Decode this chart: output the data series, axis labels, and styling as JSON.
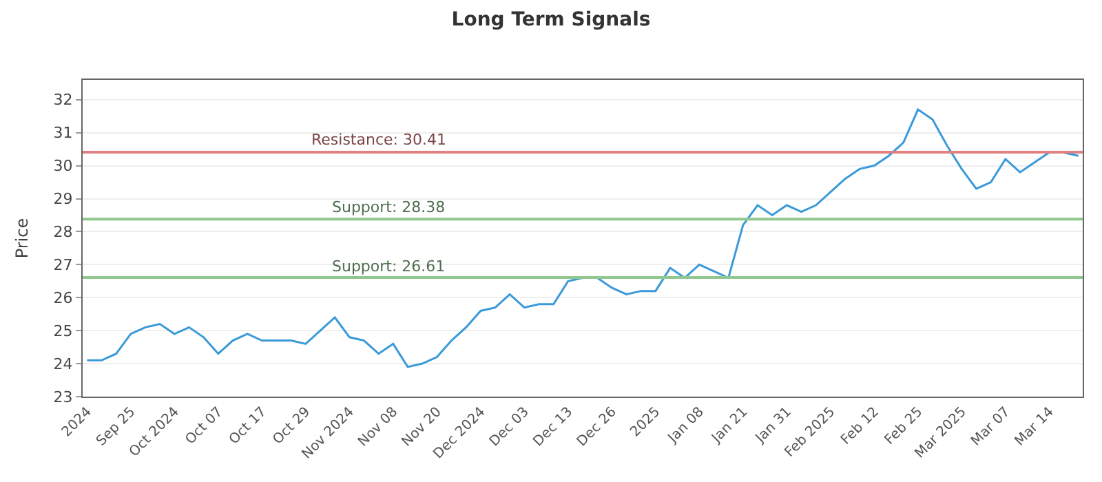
{
  "chart_data": {
    "type": "line",
    "title": "Long Term Signals",
    "ylabel": "Price",
    "categories": [
      "2024",
      null,
      null,
      "Sep 25",
      null,
      null,
      "Oct 2024",
      null,
      null,
      "Oct 07",
      null,
      null,
      "Oct 17",
      null,
      null,
      "Oct 29",
      null,
      null,
      "Nov 2024",
      null,
      null,
      "Nov 08",
      null,
      null,
      "Nov 20",
      null,
      null,
      "Dec 2024",
      null,
      null,
      "Dec 03",
      null,
      null,
      "Dec 13",
      null,
      null,
      "Dec 26",
      null,
      null,
      "2025",
      null,
      null,
      "Jan 08",
      null,
      null,
      "Jan 21",
      null,
      null,
      "Jan 31",
      null,
      null,
      "Feb 2025",
      null,
      null,
      "Feb 12",
      null,
      null,
      "Feb 25",
      null,
      null,
      "Mar 2025",
      null,
      null,
      "Mar 07",
      null,
      null,
      "Mar 14",
      null,
      null
    ],
    "series": [
      {
        "color": "#3a9ad9",
        "values": [
          24.1,
          24.1,
          24.3,
          24.9,
          25.1,
          25.2,
          24.9,
          25.1,
          24.8,
          24.3,
          24.7,
          24.9,
          24.7,
          24.7,
          24.7,
          24.6,
          25.0,
          25.4,
          24.8,
          24.7,
          24.3,
          24.6,
          23.9,
          24.0,
          24.2,
          24.7,
          25.1,
          25.6,
          25.7,
          26.1,
          25.7,
          25.8,
          25.8,
          26.5,
          26.6,
          26.6,
          26.3,
          26.1,
          26.2,
          26.2,
          26.9,
          26.6,
          27.0,
          26.8,
          26.6,
          28.2,
          28.8,
          28.5,
          28.8,
          28.6,
          28.8,
          29.2,
          29.6,
          29.9,
          30.0,
          30.3,
          30.7,
          31.7,
          31.4,
          30.6,
          29.9,
          29.3,
          29.5,
          30.2,
          29.8,
          30.1,
          30.4,
          30.4,
          30.3
        ]
      }
    ],
    "ylim": [
      23,
      32.6
    ],
    "yticks": [
      23,
      24,
      25,
      26,
      27,
      28,
      29,
      30,
      31,
      32
    ],
    "grid": "y",
    "marker": "none",
    "line_style": "solid",
    "ref_lines": [
      {
        "axis": "y",
        "value": 30.41,
        "label": "Resistance: 30.41",
        "color": "#e08080"
      },
      {
        "axis": "y",
        "value": 28.38,
        "label": "Support: 28.38",
        "color": "#90c890"
      },
      {
        "axis": "y",
        "value": 26.61,
        "label": "Support: 26.61",
        "color": "#90c890"
      }
    ]
  }
}
